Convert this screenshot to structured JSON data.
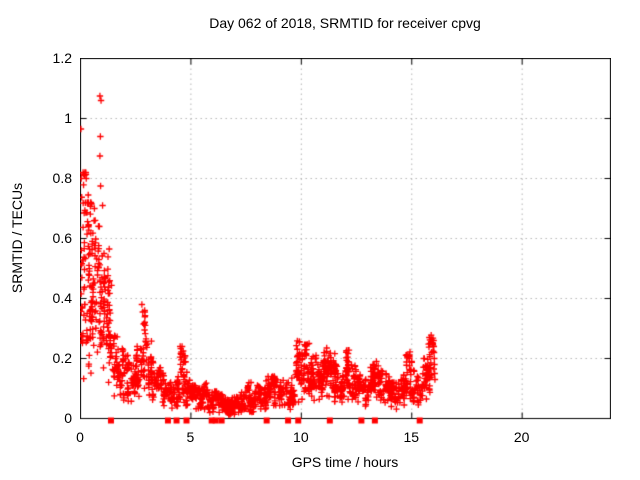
{
  "figure": {
    "background": "#ffffff",
    "border_color": "#000000",
    "grid_color": "#b4b4b4",
    "text_color": "#000000"
  },
  "chart_data": {
    "type": "scatter",
    "title": "Day 062 of 2018, SRMTID for receiver cpvg",
    "xlabel": "GPS time / hours",
    "ylabel": "SRMTID / TECUs",
    "xlim": [
      0,
      24
    ],
    "ylim": [
      0,
      1.2
    ],
    "xticks": [
      "0",
      "5",
      "10",
      "15",
      "20"
    ],
    "yticks": [
      "0",
      "0.2",
      "0.4",
      "0.6",
      "0.8",
      "1",
      "1.2"
    ],
    "grid": "dotted",
    "legend": "none",
    "data_span_hours": [
      0,
      16.1
    ],
    "series": [
      {
        "name": "srmtid-scatter",
        "marker": "plus",
        "color": "#ff0000",
        "marker_size": 7,
        "envelope_note": "dense scatter band; bins of [hour_start, y_min, y_max, approx_point_count], bin width 0.25 h",
        "envelope_bin_width": 0.25,
        "envelope": [
          [
            0.0,
            0.12,
            0.82,
            45
          ],
          [
            0.25,
            0.15,
            0.72,
            45
          ],
          [
            0.5,
            0.22,
            0.68,
            40
          ],
          [
            0.75,
            0.2,
            0.66,
            40
          ],
          [
            1.0,
            0.15,
            0.55,
            35
          ],
          [
            1.25,
            0.12,
            0.46,
            35
          ],
          [
            1.5,
            0.07,
            0.28,
            28
          ],
          [
            1.75,
            0.06,
            0.24,
            28
          ],
          [
            2.0,
            0.05,
            0.21,
            28
          ],
          [
            2.25,
            0.05,
            0.18,
            26
          ],
          [
            2.5,
            0.07,
            0.24,
            28
          ],
          [
            2.75,
            0.09,
            0.36,
            32
          ],
          [
            3.0,
            0.07,
            0.26,
            28
          ],
          [
            3.25,
            0.06,
            0.19,
            28
          ],
          [
            3.5,
            0.05,
            0.17,
            28
          ],
          [
            3.75,
            0.04,
            0.13,
            26
          ],
          [
            4.0,
            0.03,
            0.12,
            26
          ],
          [
            4.25,
            0.04,
            0.14,
            28
          ],
          [
            4.5,
            0.05,
            0.24,
            30
          ],
          [
            4.75,
            0.04,
            0.16,
            28
          ],
          [
            5.0,
            0.03,
            0.11,
            28
          ],
          [
            5.25,
            0.03,
            0.1,
            28
          ],
          [
            5.5,
            0.03,
            0.12,
            28
          ],
          [
            5.75,
            0.02,
            0.09,
            28
          ],
          [
            6.0,
            0.02,
            0.09,
            28
          ],
          [
            6.25,
            0.02,
            0.08,
            30
          ],
          [
            6.5,
            0.01,
            0.07,
            32
          ],
          [
            6.75,
            0.01,
            0.07,
            32
          ],
          [
            7.0,
            0.02,
            0.08,
            30
          ],
          [
            7.25,
            0.02,
            0.09,
            28
          ],
          [
            7.5,
            0.02,
            0.12,
            28
          ],
          [
            7.75,
            0.02,
            0.09,
            28
          ],
          [
            8.0,
            0.03,
            0.11,
            28
          ],
          [
            8.25,
            0.03,
            0.13,
            28
          ],
          [
            8.5,
            0.04,
            0.14,
            28
          ],
          [
            8.75,
            0.04,
            0.14,
            28
          ],
          [
            9.0,
            0.04,
            0.13,
            28
          ],
          [
            9.25,
            0.03,
            0.12,
            25
          ],
          [
            9.5,
            0.04,
            0.15,
            28
          ],
          [
            9.75,
            0.05,
            0.26,
            30
          ],
          [
            10.0,
            0.06,
            0.25,
            32
          ],
          [
            10.25,
            0.07,
            0.25,
            32
          ],
          [
            10.5,
            0.06,
            0.21,
            30
          ],
          [
            10.75,
            0.06,
            0.19,
            30
          ],
          [
            11.0,
            0.07,
            0.23,
            32
          ],
          [
            11.25,
            0.07,
            0.22,
            32
          ],
          [
            11.5,
            0.05,
            0.18,
            28
          ],
          [
            11.75,
            0.05,
            0.16,
            28
          ],
          [
            12.0,
            0.06,
            0.23,
            30
          ],
          [
            12.25,
            0.06,
            0.18,
            30
          ],
          [
            12.5,
            0.05,
            0.15,
            28
          ],
          [
            12.75,
            0.04,
            0.13,
            26
          ],
          [
            13.0,
            0.06,
            0.17,
            30
          ],
          [
            13.25,
            0.07,
            0.18,
            30
          ],
          [
            13.5,
            0.06,
            0.16,
            28
          ],
          [
            13.75,
            0.05,
            0.15,
            28
          ],
          [
            14.0,
            0.04,
            0.12,
            24
          ],
          [
            14.25,
            0.03,
            0.12,
            24
          ],
          [
            14.5,
            0.04,
            0.15,
            26
          ],
          [
            14.75,
            0.06,
            0.22,
            28
          ],
          [
            15.0,
            0.05,
            0.16,
            24
          ],
          [
            15.25,
            0.04,
            0.14,
            24
          ],
          [
            15.5,
            0.06,
            0.2,
            28
          ],
          [
            15.75,
            0.08,
            0.27,
            30
          ]
        ],
        "notable_points": [
          [
            0.02,
            0.965
          ],
          [
            0.03,
            0.8
          ],
          [
            0.18,
            0.81
          ],
          [
            0.26,
            0.8
          ],
          [
            0.35,
            0.745
          ],
          [
            0.5,
            0.715
          ],
          [
            0.63,
            0.7
          ],
          [
            0.88,
            1.075
          ],
          [
            0.93,
            1.06
          ],
          [
            0.9,
            0.94
          ],
          [
            0.88,
            0.875
          ],
          [
            0.91,
            0.775
          ],
          [
            1.0,
            0.71
          ],
          [
            1.3,
            0.565
          ],
          [
            2.78,
            0.38
          ],
          [
            2.82,
            0.355
          ],
          [
            2.86,
            0.315
          ],
          [
            2.9,
            0.295
          ],
          [
            4.6,
            0.24
          ],
          [
            4.65,
            0.225
          ],
          [
            7.72,
            0.12
          ],
          [
            9.92,
            0.255
          ],
          [
            10.35,
            0.25
          ],
          [
            11.15,
            0.235
          ],
          [
            12.12,
            0.228
          ],
          [
            13.4,
            0.19
          ],
          [
            14.92,
            0.222
          ],
          [
            15.88,
            0.278
          ],
          [
            15.9,
            0.262
          ],
          [
            15.93,
            0.248
          ],
          [
            15.99,
            0.26
          ],
          [
            16.0,
            0.24
          ],
          [
            16.01,
            0.22
          ],
          [
            16.02,
            0.2
          ],
          [
            16.03,
            0.18
          ],
          [
            16.0,
            0.165
          ],
          [
            16.04,
            0.15
          ],
          [
            16.05,
            0.13
          ]
        ]
      },
      {
        "name": "zero-line-flags",
        "marker": "filled-square",
        "color": "#ff0000",
        "marker_size": 6,
        "y": 0,
        "x": [
          1.38,
          3.96,
          4.35,
          4.8,
          5.94,
          6.12,
          6.39,
          8.43,
          9.4,
          9.86,
          11.29,
          12.72,
          13.33,
          15.36
        ]
      }
    ]
  }
}
